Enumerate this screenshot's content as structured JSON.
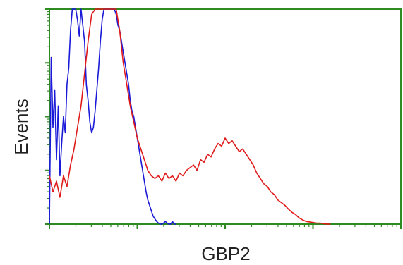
{
  "chart_data": {
    "type": "line",
    "title": "",
    "xlabel": "GBP2",
    "ylabel": "Events",
    "x_scale": "log",
    "xlim": [
      0,
      4
    ],
    "ylim": [
      0,
      4
    ],
    "grid": false,
    "legend": false,
    "colors": {
      "axis": "#2e8b22",
      "series_red": "#e01b1b",
      "series_blue": "#1a1ad8"
    },
    "series": [
      {
        "color": "#1a1ad8",
        "x": [
          0.0,
          0.02,
          0.04,
          0.06,
          0.08,
          0.1,
          0.12,
          0.14,
          0.16,
          0.18,
          0.2,
          0.22,
          0.24,
          0.26,
          0.28,
          0.3,
          0.32,
          0.34,
          0.36,
          0.38,
          0.4,
          0.42,
          0.44,
          0.46,
          0.48,
          0.5,
          0.52,
          0.54,
          0.56,
          0.58,
          0.6,
          0.62,
          0.64,
          0.66,
          0.68,
          0.7,
          0.72,
          0.74,
          0.76,
          0.78,
          0.8,
          0.82,
          0.84,
          0.86,
          0.88,
          0.9,
          0.92,
          0.94,
          0.96,
          0.98,
          1.0,
          1.02,
          1.04,
          1.06,
          1.08,
          1.1,
          1.12,
          1.14,
          1.16,
          1.18,
          1.2,
          1.22,
          1.24,
          1.26,
          1.28,
          1.3,
          1.32,
          1.34,
          1.36,
          1.38,
          1.4,
          1.42,
          1.44
        ],
        "y": [
          0.0,
          3.1,
          1.8,
          2.5,
          1.2,
          2.2,
          0.9,
          1.5,
          2.0,
          1.7,
          2.6,
          2.9,
          3.6,
          4.0,
          4.0,
          4.0,
          3.8,
          3.5,
          4.0,
          3.7,
          3.4,
          2.6,
          2.3,
          1.9,
          1.7,
          1.8,
          2.1,
          2.5,
          2.9,
          3.4,
          3.8,
          4.0,
          4.0,
          4.0,
          4.0,
          4.0,
          4.0,
          4.0,
          3.9,
          3.7,
          3.6,
          3.4,
          3.2,
          3.0,
          2.8,
          2.6,
          2.3,
          2.1,
          2.0,
          1.8,
          1.6,
          1.4,
          1.2,
          1.0,
          0.8,
          0.6,
          0.45,
          0.35,
          0.25,
          0.15,
          0.1,
          0.05,
          0.02,
          0.0,
          0.0,
          0.02,
          0.05,
          0.02,
          0.0,
          0.0,
          0.05,
          0.0,
          0.0
        ]
      },
      {
        "color": "#e01b1b",
        "x": [
          0.0,
          0.04,
          0.08,
          0.12,
          0.16,
          0.2,
          0.24,
          0.28,
          0.32,
          0.36,
          0.4,
          0.44,
          0.48,
          0.52,
          0.56,
          0.6,
          0.64,
          0.68,
          0.72,
          0.76,
          0.8,
          0.84,
          0.88,
          0.92,
          0.96,
          1.0,
          1.04,
          1.08,
          1.12,
          1.16,
          1.2,
          1.24,
          1.28,
          1.32,
          1.36,
          1.4,
          1.44,
          1.48,
          1.52,
          1.56,
          1.6,
          1.64,
          1.68,
          1.72,
          1.76,
          1.8,
          1.84,
          1.88,
          1.92,
          1.96,
          2.0,
          2.04,
          2.08,
          2.12,
          2.16,
          2.2,
          2.24,
          2.28,
          2.32,
          2.36,
          2.4,
          2.44,
          2.48,
          2.52,
          2.56,
          2.6,
          2.64,
          2.68,
          2.72,
          2.76,
          2.8,
          2.84,
          2.88,
          2.92,
          2.96,
          3.0,
          3.04,
          3.08,
          3.12,
          3.16,
          3.2
        ],
        "y": [
          0.9,
          0.6,
          0.8,
          0.5,
          0.9,
          0.7,
          1.1,
          1.4,
          1.8,
          2.2,
          2.8,
          3.4,
          3.9,
          4.0,
          4.0,
          4.0,
          4.0,
          4.0,
          4.0,
          4.0,
          3.6,
          3.0,
          2.6,
          2.2,
          1.9,
          1.6,
          1.4,
          1.2,
          1.0,
          0.9,
          0.85,
          0.9,
          0.8,
          0.95,
          0.85,
          0.9,
          0.8,
          0.95,
          0.9,
          1.0,
          1.05,
          1.1,
          1.0,
          1.2,
          1.15,
          1.3,
          1.25,
          1.4,
          1.5,
          1.45,
          1.6,
          1.5,
          1.55,
          1.45,
          1.35,
          1.4,
          1.3,
          1.2,
          1.1,
          0.95,
          0.85,
          0.75,
          0.7,
          0.6,
          0.55,
          0.45,
          0.4,
          0.35,
          0.28,
          0.22,
          0.18,
          0.12,
          0.08,
          0.05,
          0.04,
          0.03,
          0.02,
          0.02,
          0.01,
          0.0,
          0.0
        ]
      }
    ]
  }
}
